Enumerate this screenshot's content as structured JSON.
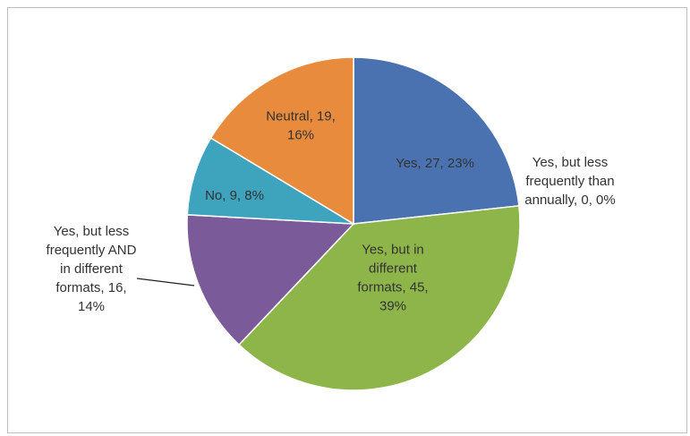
{
  "chart_data": {
    "type": "pie",
    "title": "",
    "legend": "none",
    "slices": [
      {
        "name": "Yes",
        "value": 27,
        "percent": "23%",
        "color": "#4a72b0",
        "label_lines": [
          "Yes, 27, 23%"
        ]
      },
      {
        "name": "Yes, but less frequently than annually",
        "value": 0,
        "percent": "0%",
        "color": "#c0504d",
        "label_lines": [
          "Yes, but less",
          "frequently than",
          "annually, 0, 0%"
        ]
      },
      {
        "name": "Yes, but in different formats",
        "value": 45,
        "percent": "39%",
        "color": "#8db54a",
        "label_lines": [
          "Yes, but in",
          "different",
          "formats, 45,",
          "39%"
        ]
      },
      {
        "name": "Yes, but less frequently AND in different formats",
        "value": 16,
        "percent": "14%",
        "color": "#7b5a9a",
        "label_lines": [
          "Yes, but less",
          "frequently AND",
          "in different",
          "formats, 16,",
          "14%"
        ]
      },
      {
        "name": "No",
        "value": 9,
        "percent": "8%",
        "color": "#3ea3bd",
        "label_lines": [
          "No, 9, 8%"
        ]
      },
      {
        "name": "Neutral",
        "value": 19,
        "percent": "16%",
        "color": "#e88b3c",
        "label_lines": [
          "Neutral, 19,",
          "16%"
        ]
      }
    ]
  }
}
